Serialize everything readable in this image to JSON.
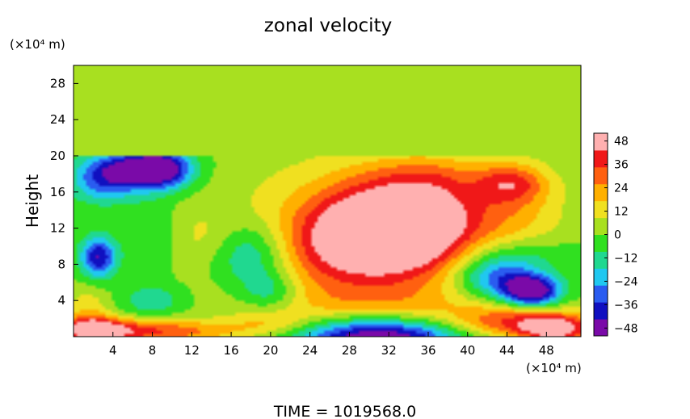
{
  "chart_data": {
    "type": "heatmap",
    "title": "zonal velocity",
    "ylabel": "Height",
    "y_unit": "(×10⁴ m)",
    "x_unit": "(×10⁴ m)",
    "x_ticks": [
      "4",
      "8",
      "12",
      "16",
      "20",
      "24",
      "28",
      "32",
      "36",
      "40",
      "44",
      "48"
    ],
    "y_ticks": [
      "4",
      "8",
      "12",
      "16",
      "20",
      "24",
      "28"
    ],
    "xlim": [
      0,
      51.5
    ],
    "ylim": [
      0,
      30
    ],
    "colorbar": {
      "ticks": [
        "48",
        "36",
        "24",
        "12",
        "0",
        "−12",
        "−24",
        "−36",
        "−48"
      ],
      "min": -52,
      "max": 52,
      "colors": [
        "#7a0aa8",
        "#1010c0",
        "#2a5cf0",
        "#20c8f0",
        "#20d890",
        "#30e020",
        "#a8e020",
        "#f0e020",
        "#ffb000",
        "#ff6010",
        "#f01818",
        "#ffb0b0"
      ]
    },
    "footer": "TIME  =  1019568.0",
    "field_base": 0,
    "field_features": [
      {
        "x": 32,
        "y": 12,
        "sx": 4.5,
        "sy": 3.5,
        "v": 55
      },
      {
        "x": 29,
        "y": 11,
        "sx": 9,
        "sy": 6,
        "v": 25
      },
      {
        "x": 26,
        "y": 10,
        "sx": 4,
        "sy": 3,
        "v": 14
      },
      {
        "x": 37,
        "y": 13,
        "sx": 3,
        "sy": 3.5,
        "v": 18
      },
      {
        "x": 31,
        "y": 0,
        "sx": 6,
        "sy": 1.6,
        "v": -62
      },
      {
        "x": 31,
        "y": 3,
        "sx": 8,
        "sy": 2,
        "v": 14
      },
      {
        "x": 5,
        "y": 18.5,
        "sx": 3,
        "sy": 1.4,
        "v": -42
      },
      {
        "x": 9,
        "y": 18.5,
        "sx": 2.2,
        "sy": 1.5,
        "v": -48
      },
      {
        "x": 3,
        "y": 16.5,
        "sx": 2.5,
        "sy": 1.5,
        "v": -20
      },
      {
        "x": 2.5,
        "y": 8.8,
        "sx": 1.3,
        "sy": 1.6,
        "v": -44
      },
      {
        "x": 18,
        "y": 9,
        "sx": 2.8,
        "sy": 2.6,
        "v": -26
      },
      {
        "x": 20,
        "y": 5,
        "sx": 2,
        "sy": 1.5,
        "v": -18
      },
      {
        "x": 8,
        "y": 4,
        "sx": 2.2,
        "sy": 1.2,
        "v": -16
      },
      {
        "x": 13,
        "y": 11,
        "sx": 2.5,
        "sy": 2.2,
        "v": 8
      },
      {
        "x": 8,
        "y": 11,
        "sx": 2,
        "sy": 3,
        "v": -10
      },
      {
        "x": 46.5,
        "y": 5,
        "sx": 2,
        "sy": 1.2,
        "v": -58
      },
      {
        "x": 43,
        "y": 6.5,
        "sx": 3,
        "sy": 1.6,
        "v": -34
      },
      {
        "x": 45,
        "y": 9,
        "sx": 4,
        "sy": 1.5,
        "v": -14
      },
      {
        "x": 45,
        "y": 1.6,
        "sx": 5,
        "sy": 1.3,
        "v": 34
      },
      {
        "x": 49,
        "y": 0.8,
        "sx": 2.5,
        "sy": 1,
        "v": 40
      },
      {
        "x": 44,
        "y": 14,
        "sx": 4,
        "sy": 3.5,
        "v": 18
      },
      {
        "x": 44.5,
        "y": 17,
        "sx": 2.5,
        "sy": 1.5,
        "v": 26
      },
      {
        "x": 36,
        "y": 18,
        "sx": 4,
        "sy": 1.5,
        "v": 10
      },
      {
        "x": 8,
        "y": 0.6,
        "sx": 6,
        "sy": 0.9,
        "v": 34
      },
      {
        "x": 2,
        "y": 0.8,
        "sx": 2.5,
        "sy": 1,
        "v": 42
      },
      {
        "x": 20,
        "y": 1.5,
        "sx": 3,
        "sy": 1,
        "v": 14
      },
      {
        "x": 1.5,
        "y": 3,
        "sx": 1.5,
        "sy": 2,
        "v": 14
      }
    ],
    "upper_layer": {
      "from_height": 20,
      "value": 1
    }
  }
}
